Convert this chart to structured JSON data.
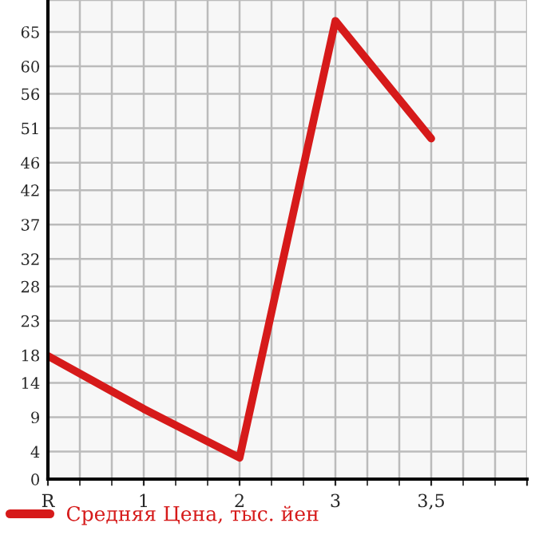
{
  "chart_data": {
    "type": "line",
    "categories": [
      "R",
      "1",
      "2",
      "3",
      "3,5",
      null
    ],
    "series": [
      {
        "name": "Средняя Цена, тыс. йен",
        "color": "#d61a1a",
        "values": [
          17.9,
          10.2,
          3.1,
          66.6,
          49.5,
          null
        ]
      }
    ],
    "ylim": [
      0,
      69.64
    ],
    "yticks": [
      0,
      4,
      9,
      14,
      18,
      23,
      28,
      32,
      37,
      42,
      46,
      51,
      56,
      60,
      65,
      {
        "value": 69.64,
        "label": null
      }
    ],
    "grid": true,
    "legend": "bottom left",
    "marker": "none",
    "line_style": "solid"
  }
}
